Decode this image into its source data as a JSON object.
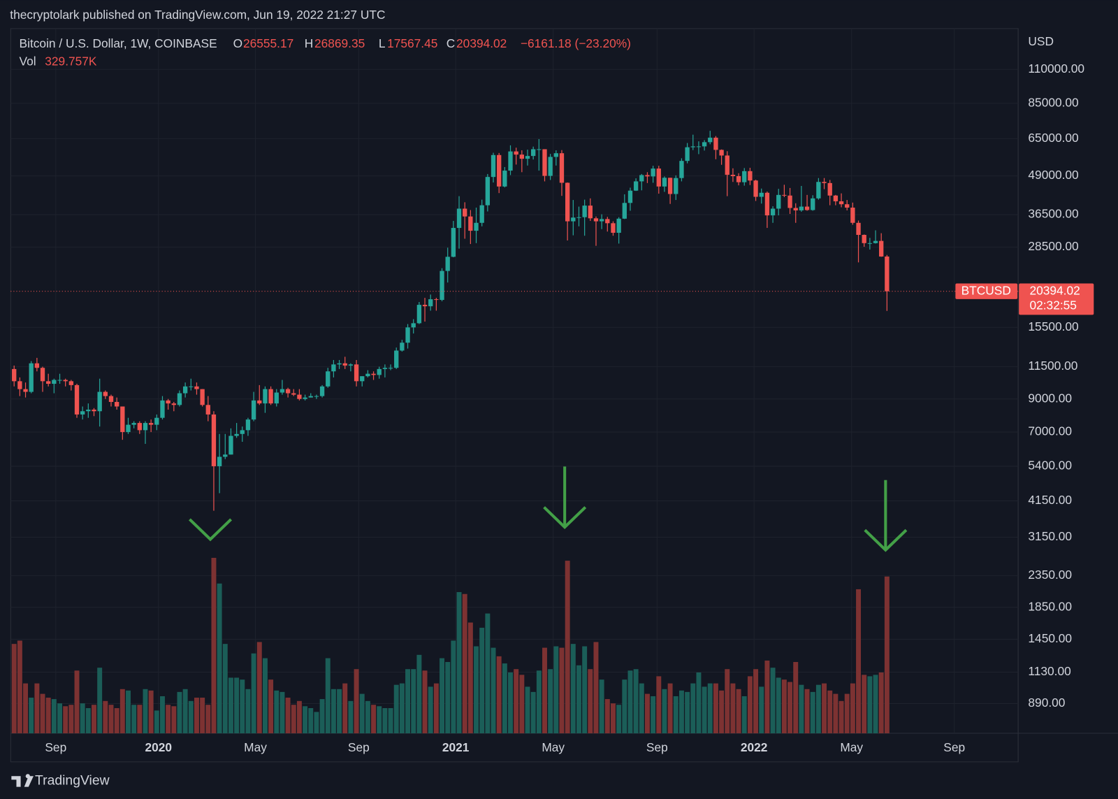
{
  "header": {
    "publisher": "thecryptolark published on TradingView.com, Jun 19, 2022 21:27 UTC",
    "brand": "TradingView"
  },
  "chart_data": {
    "type": "candlestick",
    "symbol_title": "Bitcoin / U.S. Dollar, 1W, COINBASE",
    "ohlc_labels": [
      "O",
      "H",
      "L",
      "C"
    ],
    "change_label": "−6161.18 (−23.20%)",
    "volume_title": "Vol",
    "volume_label": "329.757K",
    "currency": "USD",
    "ticker": "BTCUSD",
    "countdown": "02:32:55",
    "log_scale": true,
    "grid": true,
    "up_color": "#26a69a",
    "down_color": "#ef5350",
    "volume_up_color": "#1b5e58",
    "volume_down_color": "#7d3232",
    "ylim": [
      710,
      150000
    ],
    "yticks": [
      {
        "value": 110000,
        "label": "110000.00"
      },
      {
        "value": 85000,
        "label": "85000.00"
      },
      {
        "value": 65000,
        "label": "65000.00"
      },
      {
        "value": 49000,
        "label": "49000.00"
      },
      {
        "value": 36500,
        "label": "36500.00"
      },
      {
        "value": 28500,
        "label": "28500.00"
      },
      {
        "value": 15500,
        "label": "15500.00"
      },
      {
        "value": 11500,
        "label": "11500.00"
      },
      {
        "value": 9000,
        "label": "9000.00"
      },
      {
        "value": 7000,
        "label": "7000.00"
      },
      {
        "value": 5400,
        "label": "5400.00"
      },
      {
        "value": 4150,
        "label": "4150.00"
      },
      {
        "value": 3150,
        "label": "3150.00"
      },
      {
        "value": 2350,
        "label": "2350.00"
      },
      {
        "value": 1850,
        "label": "1850.00"
      },
      {
        "value": 1450,
        "label": "1450.00"
      },
      {
        "value": 1130,
        "label": "1130.00"
      },
      {
        "value": 890,
        "label": "890.00"
      }
    ],
    "xlim": [
      -0.6,
      176
    ],
    "xticks": [
      {
        "value": 7.3,
        "label": "Sep"
      },
      {
        "value": 25.3,
        "label": "2020"
      },
      {
        "value": 42.3,
        "label": "May"
      },
      {
        "value": 60.4,
        "label": "Sep"
      },
      {
        "value": 77.4,
        "label": "2021"
      },
      {
        "value": 94.5,
        "label": "May"
      },
      {
        "value": 112.7,
        "label": "Sep"
      },
      {
        "value": 129.7,
        "label": "2022"
      },
      {
        "value": 146.8,
        "label": "May"
      },
      {
        "value": 164.8,
        "label": "Sep"
      }
    ],
    "open": [
      11300,
      10300,
      9700,
      9500,
      11800,
      11400,
      10300,
      10100,
      10400,
      10400,
      10300,
      10000,
      8000,
      8200,
      8300,
      8200,
      9500,
      9200,
      8800,
      8500,
      7000,
      7400,
      7500,
      7100,
      7500,
      7400,
      7800,
      8900,
      8700,
      8600,
      9400,
      9900,
      9900,
      9700,
      8600,
      8000,
      5400,
      5800,
      5900,
      6800,
      6900,
      7100,
      7700,
      8900,
      8700,
      9700,
      8700,
      9450,
      9700,
      9400,
      9300,
      9000,
      9100,
      9200,
      9200,
      9900,
      11100,
      11700,
      11800,
      11600,
      11700,
      10300,
      10700,
      10900,
      10800,
      11300,
      11400,
      11400,
      13000,
      13800,
      15500,
      16000,
      18400,
      18200,
      19200,
      19100,
      23800,
      26500,
      33000,
      38200,
      36000,
      32300,
      34300,
      39200,
      48600,
      57400,
      45200,
      51000,
      59000,
      57600,
      55800,
      57000,
      60000,
      60000,
      49000,
      56600,
      58200,
      46500,
      34700,
      35700,
      35800,
      39100,
      35500,
      34700,
      35300,
      34200,
      31800,
      35400,
      39900,
      43800,
      47000,
      49300,
      48800,
      51800,
      45200,
      48300,
      42700,
      48200,
      54900,
      60900,
      61300,
      61300,
      63300,
      65500,
      59700,
      57200,
      49400,
      48900,
      46700,
      50800,
      47300,
      41800,
      43100,
      36300,
      38200,
      42400,
      42200,
      38400,
      37700,
      38800,
      37800,
      41300,
      46800,
      46400,
      42200,
      40400,
      39500,
      38500,
      34300,
      31300,
      29400,
      29400,
      29900,
      26555.17
    ],
    "high": [
      11600,
      10600,
      10200,
      12000,
      12300,
      11500,
      10900,
      10500,
      10900,
      10500,
      10400,
      10100,
      8500,
      8700,
      8400,
      10500,
      9600,
      9300,
      9100,
      8500,
      7800,
      7600,
      7600,
      7600,
      7700,
      8000,
      9200,
      9000,
      8800,
      9600,
      10200,
      10500,
      10200,
      9700,
      9200,
      8200,
      6900,
      6900,
      7200,
      7500,
      7300,
      7800,
      9500,
      10000,
      9900,
      9900,
      9700,
      10400,
      9800,
      9700,
      9700,
      9300,
      9400,
      9300,
      10000,
      11400,
      12100,
      12100,
      12400,
      11800,
      12100,
      10700,
      11200,
      11100,
      11500,
      11700,
      11700,
      13300,
      14100,
      15900,
      16500,
      18800,
      19400,
      19900,
      19400,
      24300,
      28400,
      34800,
      42000,
      40100,
      37800,
      38500,
      40900,
      49700,
      58400,
      58300,
      52400,
      61800,
      60700,
      59500,
      59800,
      61200,
      64800,
      60000,
      57900,
      59500,
      59600,
      46600,
      40800,
      38800,
      40900,
      41300,
      36000,
      36600,
      35900,
      34700,
      35800,
      42600,
      44800,
      48100,
      49700,
      50400,
      52900,
      52900,
      48800,
      48300,
      49200,
      56000,
      62900,
      67000,
      63700,
      64300,
      69000,
      66300,
      59900,
      59100,
      51900,
      50000,
      52000,
      52100,
      47600,
      44500,
      43500,
      38900,
      44400,
      45800,
      44700,
      39800,
      45400,
      42400,
      42300,
      48200,
      48200,
      47500,
      42400,
      42900,
      40800,
      40000,
      34900,
      31400,
      30600,
      32400,
      31700,
      26869.35
    ],
    "low": [
      9900,
      9200,
      9100,
      9400,
      11100,
      9500,
      9900,
      9400,
      10100,
      9900,
      9600,
      7800,
      7700,
      7800,
      7900,
      7300,
      9000,
      8500,
      8300,
      6600,
      6900,
      7200,
      6900,
      6400,
      7000,
      7100,
      7700,
      8300,
      8200,
      8500,
      9100,
      9600,
      9300,
      8500,
      7600,
      3850,
      4400,
      5700,
      5900,
      6700,
      6500,
      6800,
      7600,
      8600,
      8100,
      8600,
      8500,
      9300,
      9100,
      9200,
      8900,
      8900,
      9100,
      9000,
      9100,
      9800,
      10600,
      11300,
      11300,
      11100,
      9900,
      9900,
      10600,
      10400,
      10500,
      10600,
      11200,
      11300,
      12900,
      13200,
      14800,
      15900,
      16200,
      17600,
      17600,
      18900,
      21800,
      26400,
      28200,
      30400,
      29200,
      29400,
      33400,
      37400,
      46600,
      43000,
      44900,
      49300,
      53400,
      50400,
      53000,
      55500,
      51000,
      47000,
      47500,
      53000,
      42100,
      30000,
      31200,
      33400,
      31100,
      34800,
      28800,
      32700,
      32100,
      31100,
      29300,
      35300,
      37600,
      43700,
      43900,
      46400,
      46500,
      42800,
      43400,
      39600,
      40800,
      47000,
      53900,
      59600,
      57800,
      59400,
      62300,
      55600,
      53300,
      42000,
      46800,
      45600,
      45500,
      45700,
      40500,
      39700,
      33000,
      34300,
      36300,
      41700,
      36700,
      34300,
      37300,
      37600,
      37600,
      40900,
      44300,
      39200,
      39200,
      38600,
      37700,
      33800,
      25400,
      28600,
      28000,
      29300,
      26500,
      17567.45
    ],
    "close": [
      10300,
      9700,
      9500,
      11800,
      11400,
      10300,
      10100,
      10400,
      10400,
      10300,
      10000,
      8000,
      8200,
      8300,
      8200,
      9500,
      9200,
      8800,
      8500,
      7000,
      7400,
      7500,
      7100,
      7500,
      7400,
      7800,
      8900,
      8700,
      8600,
      9400,
      9900,
      9900,
      9700,
      8600,
      8000,
      5400,
      5800,
      5900,
      6800,
      6900,
      7100,
      7700,
      8900,
      8700,
      9700,
      8700,
      9450,
      9700,
      9400,
      9300,
      9000,
      9100,
      9200,
      9200,
      9900,
      11100,
      11700,
      11800,
      11600,
      11700,
      10300,
      10700,
      10900,
      10800,
      11300,
      11400,
      11400,
      13000,
      13800,
      15500,
      16000,
      18400,
      18200,
      19200,
      19100,
      23800,
      26500,
      33000,
      38200,
      36000,
      32300,
      34300,
      39200,
      48600,
      57400,
      45200,
      51000,
      59000,
      57600,
      55800,
      57000,
      60000,
      60000,
      49000,
      56600,
      58200,
      46500,
      34700,
      35700,
      35800,
      39100,
      35500,
      34700,
      35300,
      34200,
      31800,
      35400,
      39900,
      43800,
      47000,
      49300,
      48800,
      51800,
      45200,
      48300,
      42700,
      48200,
      54900,
      60900,
      61300,
      61300,
      63300,
      65500,
      59700,
      57200,
      49400,
      48900,
      46700,
      50800,
      47300,
      41800,
      43100,
      36300,
      38200,
      42400,
      42200,
      38400,
      37700,
      38800,
      37800,
      41300,
      46800,
      46400,
      42200,
      40400,
      39500,
      38500,
      34300,
      31300,
      29400,
      29400,
      29900,
      26555.2,
      20394.02
    ],
    "volume": [
      188,
      195,
      105,
      75,
      105,
      83,
      75,
      72,
      63,
      57,
      60,
      132,
      63,
      53,
      60,
      138,
      68,
      60,
      53,
      93,
      90,
      60,
      60,
      93,
      90,
      48,
      78,
      60,
      57,
      87,
      93,
      68,
      75,
      75,
      60,
      369,
      315,
      188,
      117,
      117,
      113,
      93,
      168,
      192,
      158,
      113,
      90,
      87,
      75,
      60,
      68,
      57,
      53,
      45,
      72,
      158,
      93,
      93,
      105,
      68,
      135,
      83,
      68,
      60,
      57,
      53,
      53,
      102,
      105,
      135,
      135,
      165,
      132,
      98,
      105,
      158,
      150,
      195,
      297,
      293,
      233,
      183,
      222,
      252,
      180,
      162,
      147,
      128,
      135,
      123,
      98,
      87,
      132,
      180,
      135,
      183,
      180,
      363,
      188,
      143,
      183,
      135,
      192,
      113,
      72,
      63,
      60,
      113,
      132,
      135,
      105,
      83,
      78,
      120,
      93,
      105,
      78,
      90,
      87,
      105,
      128,
      98,
      105,
      105,
      90,
      135,
      105,
      93,
      78,
      120,
      135,
      98,
      153,
      138,
      117,
      113,
      108,
      150,
      102,
      93,
      87,
      102,
      105,
      90,
      83,
      68,
      83,
      105,
      303,
      123,
      120,
      123,
      128,
      329.757
    ]
  }
}
